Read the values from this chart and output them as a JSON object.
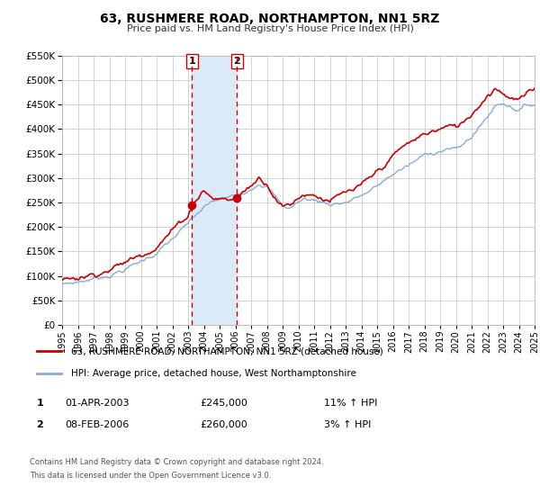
{
  "title": "63, RUSHMERE ROAD, NORTHAMPTON, NN1 5RZ",
  "subtitle": "Price paid vs. HM Land Registry's House Price Index (HPI)",
  "legend_line1": "63, RUSHMERE ROAD, NORTHAMPTON, NN1 5RZ (detached house)",
  "legend_line2": "HPI: Average price, detached house, West Northamptonshire",
  "footer1": "Contains HM Land Registry data © Crown copyright and database right 2024.",
  "footer2": "This data is licensed under the Open Government Licence v3.0.",
  "purchase1_label": "1",
  "purchase1_date": "01-APR-2003",
  "purchase1_price": "£245,000",
  "purchase1_hpi": "11% ↑ HPI",
  "purchase2_label": "2",
  "purchase2_date": "08-FEB-2006",
  "purchase2_price": "£260,000",
  "purchase2_hpi": "3% ↑ HPI",
  "purchase1_x": 2003.25,
  "purchase1_y": 245000,
  "purchase2_x": 2006.1,
  "purchase2_y": 260000,
  "vline1_x": 2003.25,
  "vline2_x": 2006.1,
  "shade_color": "#daeaf7",
  "vline_color": "#cc0000",
  "property_color": "#cc0000",
  "hpi_color": "#88aadd",
  "xlim": [
    1995,
    2025
  ],
  "ylim": [
    0,
    550000
  ],
  "yticks": [
    0,
    50000,
    100000,
    150000,
    200000,
    250000,
    300000,
    350000,
    400000,
    450000,
    500000,
    550000
  ],
  "xticks": [
    1995,
    1996,
    1997,
    1998,
    1999,
    2000,
    2001,
    2002,
    2003,
    2004,
    2005,
    2006,
    2007,
    2008,
    2009,
    2010,
    2011,
    2012,
    2013,
    2014,
    2015,
    2016,
    2017,
    2018,
    2019,
    2020,
    2021,
    2022,
    2023,
    2024,
    2025
  ],
  "background_color": "#ffffff",
  "grid_color": "#cccccc"
}
